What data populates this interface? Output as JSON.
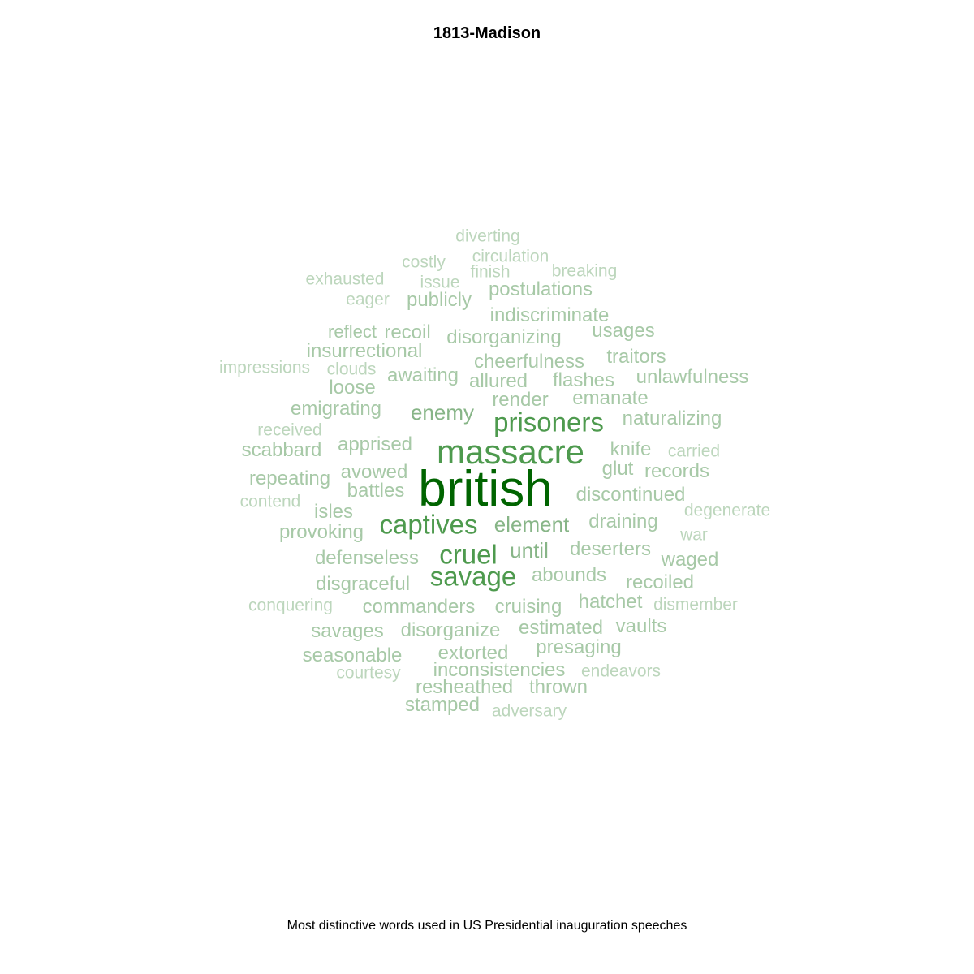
{
  "title": "1813-Madison",
  "caption": "Most distinctive words used in US Presidential inauguration speeches",
  "colors": {
    "darkest": "#006400",
    "dark": "#4e9a4e",
    "mid": "#87b587",
    "light": "#a7c9a7",
    "lightest": "#bcd6bc"
  },
  "words": [
    {
      "text": "british",
      "shade": "darkest"
    },
    {
      "text": "massacre",
      "shade": "dark"
    },
    {
      "text": "prisoners",
      "shade": "dark"
    },
    {
      "text": "captives",
      "shade": "dark"
    },
    {
      "text": "savage",
      "shade": "dark"
    },
    {
      "text": "cruel",
      "shade": "dark"
    },
    {
      "text": "diverting",
      "shade": "lightest"
    },
    {
      "text": "circulation",
      "shade": "lightest"
    },
    {
      "text": "costly",
      "shade": "lightest"
    },
    {
      "text": "finish",
      "shade": "lightest"
    },
    {
      "text": "breaking",
      "shade": "lightest"
    },
    {
      "text": "exhausted",
      "shade": "lightest"
    },
    {
      "text": "issue",
      "shade": "lightest"
    },
    {
      "text": "postulations",
      "shade": "light"
    },
    {
      "text": "eager",
      "shade": "lightest"
    },
    {
      "text": "publicly",
      "shade": "light"
    },
    {
      "text": "indiscriminate",
      "shade": "light"
    },
    {
      "text": "reflect",
      "shade": "light"
    },
    {
      "text": "recoil",
      "shade": "light"
    },
    {
      "text": "disorganizing",
      "shade": "light"
    },
    {
      "text": "usages",
      "shade": "light"
    },
    {
      "text": "insurrectional",
      "shade": "light"
    },
    {
      "text": "traitors",
      "shade": "light"
    },
    {
      "text": "cheerfulness",
      "shade": "light"
    },
    {
      "text": "impressions",
      "shade": "lightest"
    },
    {
      "text": "clouds",
      "shade": "lightest"
    },
    {
      "text": "awaiting",
      "shade": "light"
    },
    {
      "text": "unlawfulness",
      "shade": "light"
    },
    {
      "text": "allured",
      "shade": "light"
    },
    {
      "text": "flashes",
      "shade": "light"
    },
    {
      "text": "loose",
      "shade": "light"
    },
    {
      "text": "render",
      "shade": "light"
    },
    {
      "text": "emanate",
      "shade": "light"
    },
    {
      "text": "emigrating",
      "shade": "light"
    },
    {
      "text": "enemy",
      "shade": "mid"
    },
    {
      "text": "naturalizing",
      "shade": "light"
    },
    {
      "text": "received",
      "shade": "lightest"
    },
    {
      "text": "scabbard",
      "shade": "light"
    },
    {
      "text": "apprised",
      "shade": "light"
    },
    {
      "text": "knife",
      "shade": "light"
    },
    {
      "text": "carried",
      "shade": "lightest"
    },
    {
      "text": "glut",
      "shade": "light"
    },
    {
      "text": "records",
      "shade": "light"
    },
    {
      "text": "repeating",
      "shade": "light"
    },
    {
      "text": "avowed",
      "shade": "light"
    },
    {
      "text": "contend",
      "shade": "lightest"
    },
    {
      "text": "battles",
      "shade": "light"
    },
    {
      "text": "discontinued",
      "shade": "light"
    },
    {
      "text": "degenerate",
      "shade": "lightest"
    },
    {
      "text": "isles",
      "shade": "light"
    },
    {
      "text": "element",
      "shade": "mid"
    },
    {
      "text": "draining",
      "shade": "light"
    },
    {
      "text": "provoking",
      "shade": "light"
    },
    {
      "text": "war",
      "shade": "lightest"
    },
    {
      "text": "until",
      "shade": "mid"
    },
    {
      "text": "deserters",
      "shade": "light"
    },
    {
      "text": "defenseless",
      "shade": "light"
    },
    {
      "text": "waged",
      "shade": "light"
    },
    {
      "text": "abounds",
      "shade": "light"
    },
    {
      "text": "disgraceful",
      "shade": "light"
    },
    {
      "text": "recoiled",
      "shade": "light"
    },
    {
      "text": "hatchet",
      "shade": "light"
    },
    {
      "text": "conquering",
      "shade": "lightest"
    },
    {
      "text": "commanders",
      "shade": "light"
    },
    {
      "text": "cruising",
      "shade": "light"
    },
    {
      "text": "dismember",
      "shade": "lightest"
    },
    {
      "text": "estimated",
      "shade": "light"
    },
    {
      "text": "vaults",
      "shade": "light"
    },
    {
      "text": "savages",
      "shade": "light"
    },
    {
      "text": "disorganize",
      "shade": "light"
    },
    {
      "text": "presaging",
      "shade": "light"
    },
    {
      "text": "seasonable",
      "shade": "light"
    },
    {
      "text": "extorted",
      "shade": "light"
    },
    {
      "text": "courtesy",
      "shade": "lightest"
    },
    {
      "text": "inconsistencies",
      "shade": "light"
    },
    {
      "text": "endeavors",
      "shade": "lightest"
    },
    {
      "text": "resheathed",
      "shade": "light"
    },
    {
      "text": "thrown",
      "shade": "light"
    },
    {
      "text": "stamped",
      "shade": "light"
    },
    {
      "text": "adversary",
      "shade": "lightest"
    }
  ]
}
